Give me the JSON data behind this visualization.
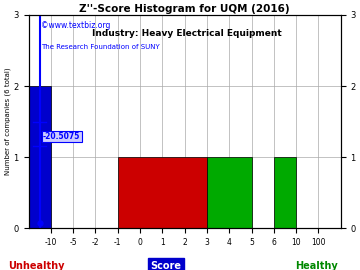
{
  "title": "Z''-Score Histogram for UQM (2016)",
  "subtitle": "Industry: Heavy Electrical Equipment",
  "watermark1": "©www.textbiz.org",
  "watermark2": "The Research Foundation of SUNY",
  "xlabel_center": "Score",
  "xlabel_left": "Unhealthy",
  "xlabel_right": "Healthy",
  "ylabel": "Number of companies (6 total)",
  "xtick_labels": [
    "-10",
    "-5",
    "-2",
    "-1",
    "0",
    "1",
    "2",
    "3",
    "4",
    "5",
    "6",
    "10",
    "100"
  ],
  "xtick_positions": [
    0,
    1,
    2,
    3,
    4,
    5,
    6,
    7,
    8,
    9,
    10,
    11,
    12
  ],
  "ylim": [
    0,
    3
  ],
  "ytick_positions": [
    0,
    1,
    2,
    3
  ],
  "bg_color": "#ffffff",
  "grid_color": "#aaaaaa",
  "title_color": "#000000",
  "subtitle_color": "#000000",
  "unhealthy_color": "#cc0000",
  "healthy_color": "#008800",
  "uqm_score_label": "-20.5075",
  "bar_color_blue": "#0000cc",
  "bar_color_red": "#cc0000",
  "bar_color_green": "#00aa00"
}
